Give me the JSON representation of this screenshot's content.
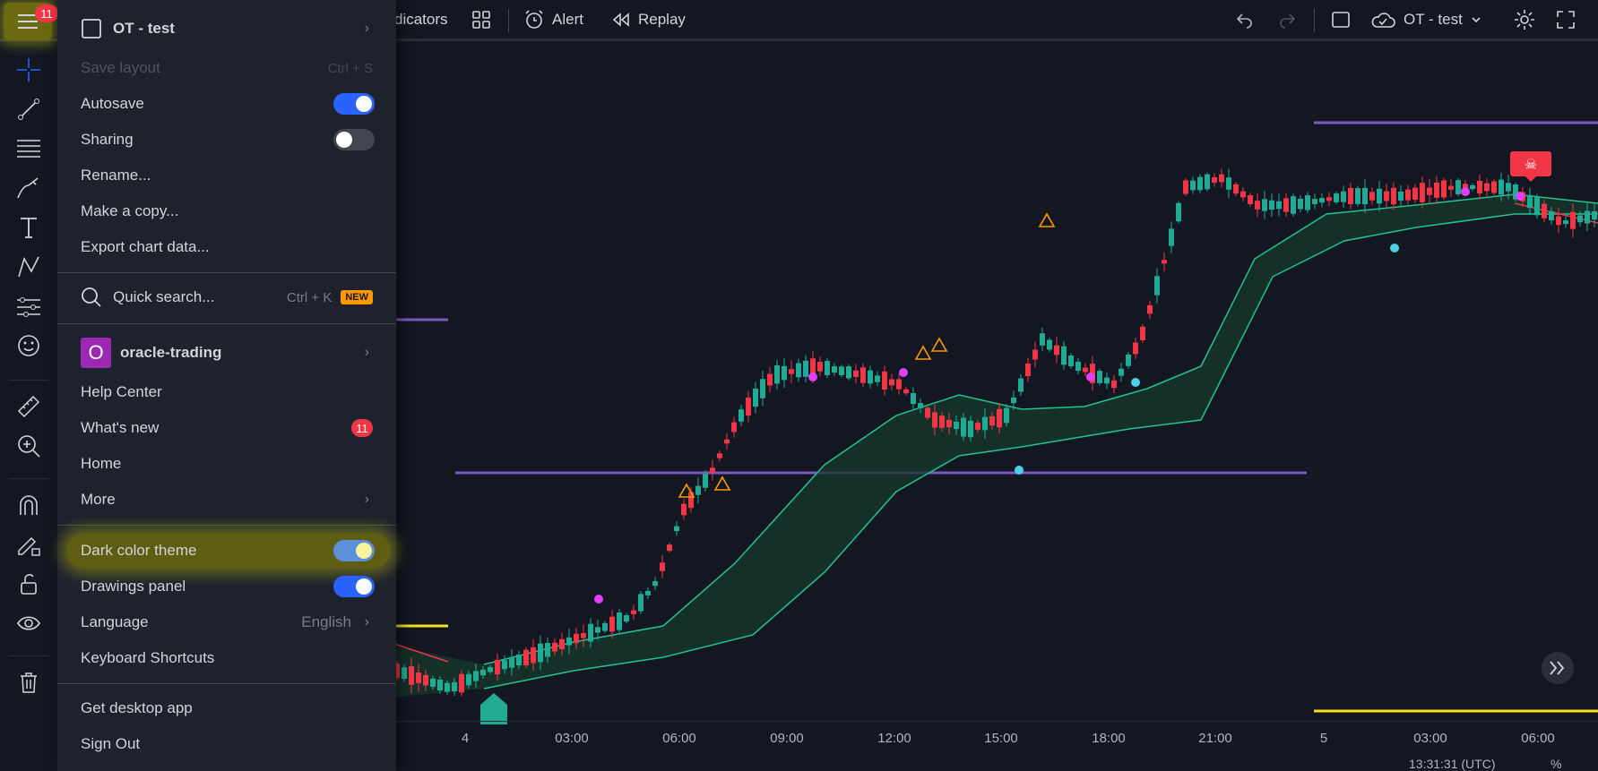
{
  "topbar": {
    "indicators_label": "dicators",
    "alert_label": "Alert",
    "replay_label": "Replay",
    "layout_label": "OT - test"
  },
  "burger": {
    "badge": "11",
    "icon": "menu-icon"
  },
  "menu": {
    "layout_name": "OT - test",
    "save_layout": "Save layout",
    "save_layout_shortcut": "Ctrl + S",
    "autosave": "Autosave",
    "sharing": "Sharing",
    "rename": "Rename...",
    "make_copy": "Make a copy...",
    "export": "Export chart data...",
    "quick_search": "Quick search...",
    "quick_search_shortcut": "Ctrl + K",
    "new_badge": "NEW",
    "workspace_initial": "O",
    "workspace_name": "oracle-trading",
    "help_center": "Help Center",
    "whats_new": "What's new",
    "whats_new_badge": "11",
    "home": "Home",
    "more": "More",
    "dark_theme": "Dark color theme",
    "drawings_panel": "Drawings panel",
    "language": "Language",
    "language_value": "English",
    "keyboard_shortcuts": "Keyboard Shortcuts",
    "desktop_app": "Get desktop app",
    "sign_out": "Sign Out"
  },
  "axis": {
    "ticks": [
      "4",
      "03:00",
      "06:00",
      "09:00",
      "12:00",
      "15:00",
      "18:00",
      "21:00",
      "5",
      "03:00",
      "06:00"
    ]
  },
  "bottombar": {
    "time": "13:31:31 (UTC)",
    "pct": "%"
  }
}
